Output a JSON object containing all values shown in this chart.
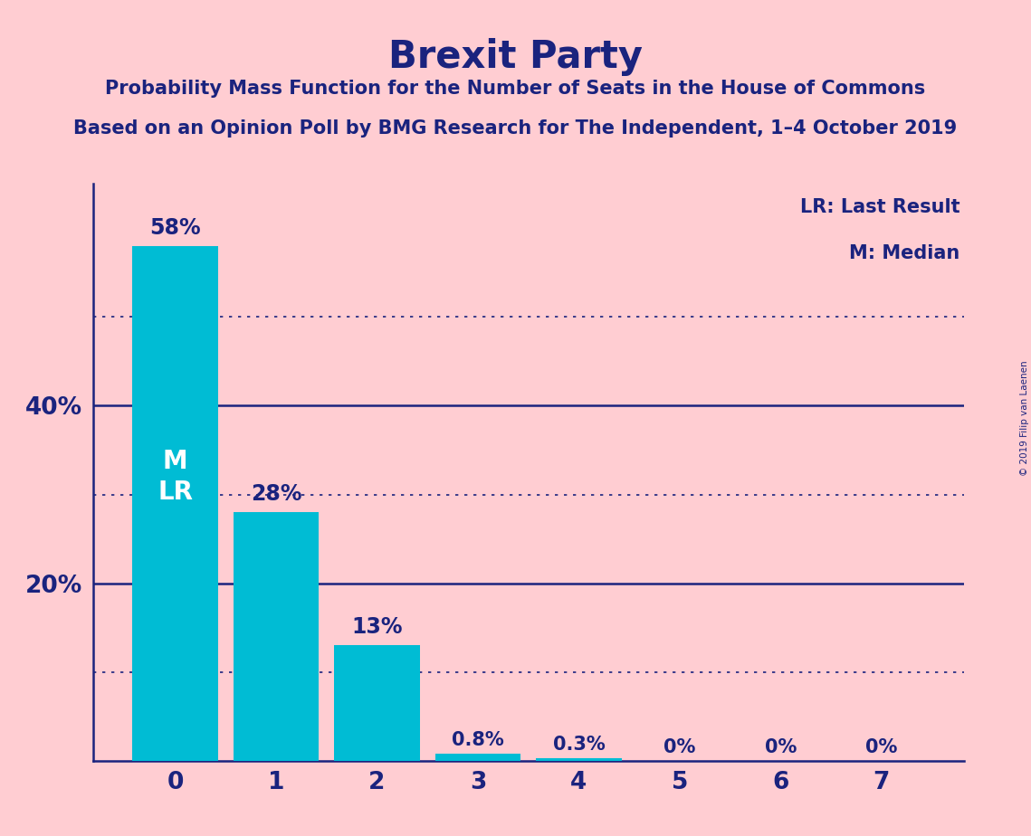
{
  "title": "Brexit Party",
  "subtitle1": "Probability Mass Function for the Number of Seats in the House of Commons",
  "subtitle2": "Based on an Opinion Poll by BMG Research for The Independent, 1–4 October 2019",
  "copyright": "© 2019 Filip van Laenen",
  "categories": [
    0,
    1,
    2,
    3,
    4,
    5,
    6,
    7
  ],
  "values": [
    58,
    28,
    13,
    0.8,
    0.3,
    0,
    0,
    0
  ],
  "bar_labels": [
    "58%",
    "28%",
    "13%",
    "0.8%",
    "0.3%",
    "0%",
    "0%",
    "0%"
  ],
  "bar_color": "#00BCD4",
  "background_color": "#FFCDD2",
  "title_color": "#1A237E",
  "legend_text1": "LR: Last Result",
  "legend_text2": "M: Median",
  "solid_line_values": [
    40,
    20
  ],
  "dotted_line_values": [
    50,
    30,
    10
  ],
  "ylim": [
    0,
    65
  ],
  "yticks": [
    20,
    40
  ],
  "ytick_labels": [
    "20%",
    "40%"
  ],
  "title_fontsize": 30,
  "subtitle_fontsize": 15,
  "tick_fontsize": 19,
  "bar_label_fontsize_large": 17,
  "bar_label_fontsize_small": 15,
  "legend_fontsize": 15,
  "mlr_fontsize": 20
}
